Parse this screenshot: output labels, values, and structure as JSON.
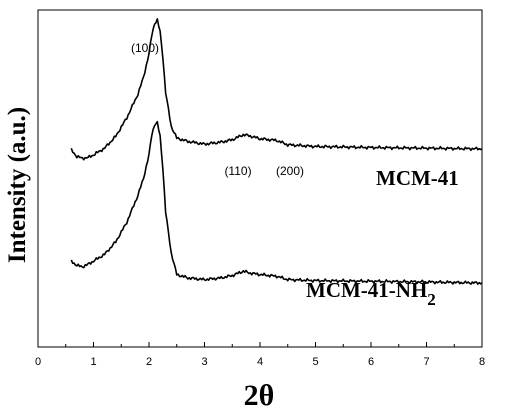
{
  "chart_data": {
    "type": "line",
    "title": "",
    "xlabel": "2θ",
    "ylabel": "Intensity (a.u.)",
    "xlim": [
      0,
      8
    ],
    "ylim": [
      0,
      1
    ],
    "x_ticks": [
      "0",
      "1",
      "2",
      "3",
      "4",
      "5",
      "6",
      "7",
      "8"
    ],
    "y_ticks": [],
    "grid": false,
    "series": [
      {
        "name": "MCM-41",
        "x": [
          0.6,
          0.7,
          0.8,
          0.9,
          1.0,
          1.2,
          1.4,
          1.6,
          1.8,
          1.9,
          2.0,
          2.05,
          2.1,
          2.15,
          2.2,
          2.25,
          2.3,
          2.4,
          2.5,
          2.7,
          3.0,
          3.3,
          3.5,
          3.7,
          3.8,
          4.0,
          4.3,
          4.5,
          5.0,
          6.0,
          7.0,
          8.0
        ],
        "y": [
          0.585,
          0.565,
          0.56,
          0.562,
          0.57,
          0.59,
          0.625,
          0.68,
          0.75,
          0.8,
          0.87,
          0.925,
          0.96,
          0.97,
          0.935,
          0.86,
          0.755,
          0.655,
          0.62,
          0.61,
          0.602,
          0.608,
          0.615,
          0.63,
          0.627,
          0.618,
          0.613,
          0.6,
          0.595,
          0.592,
          0.59,
          0.588
        ]
      },
      {
        "name": "MCM-41-NH2",
        "x": [
          0.6,
          0.7,
          0.8,
          0.9,
          1.0,
          1.2,
          1.4,
          1.6,
          1.8,
          1.9,
          2.0,
          2.05,
          2.1,
          2.15,
          2.2,
          2.25,
          2.3,
          2.4,
          2.5,
          2.7,
          3.0,
          3.3,
          3.5,
          3.7,
          3.8,
          4.0,
          4.3,
          4.5,
          5.0,
          6.0,
          7.0,
          8.0
        ],
        "y": [
          0.255,
          0.242,
          0.238,
          0.245,
          0.255,
          0.275,
          0.312,
          0.37,
          0.45,
          0.5,
          0.57,
          0.63,
          0.66,
          0.665,
          0.625,
          0.53,
          0.4,
          0.28,
          0.215,
          0.205,
          0.2,
          0.205,
          0.212,
          0.225,
          0.22,
          0.215,
          0.21,
          0.2,
          0.197,
          0.195,
          0.193,
          0.19
        ]
      }
    ],
    "annotations": [
      "(100)",
      "(110)",
      "(200)"
    ],
    "series_labels": {
      "mcm41": "MCM-41",
      "nh2_main": "MCM-41-NH",
      "nh2_sub": "2"
    }
  }
}
